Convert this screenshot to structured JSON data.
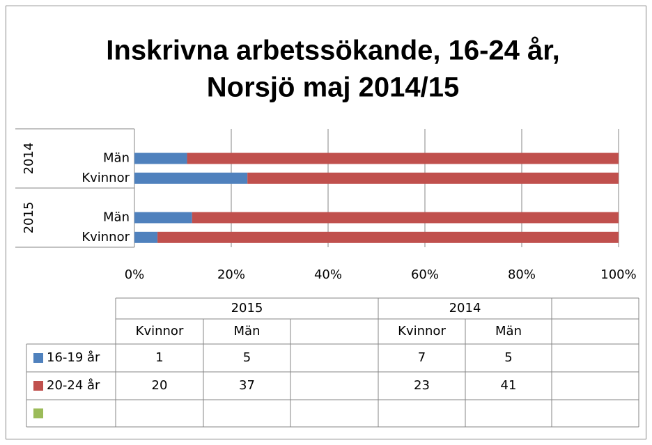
{
  "chart_data": {
    "type": "bar_stacked_100",
    "orientation": "horizontal",
    "title": [
      "Inskrivna arbetssökande, 16-24 år,",
      "Norsjö maj 2014/15"
    ],
    "groups": [
      "2015",
      "2014"
    ],
    "categories": [
      "Kvinnor",
      "Män",
      null,
      "Kvinnor",
      "Män",
      null
    ],
    "series": [
      {
        "name": "16-19 år",
        "color": "#4f81bd",
        "values": [
          1,
          5,
          null,
          7,
          5,
          null
        ]
      },
      {
        "name": "20-24 år",
        "color": "#c0504d",
        "values": [
          20,
          37,
          null,
          23,
          41,
          null
        ]
      },
      {
        "name": null,
        "color": "#9bbb59",
        "values": [
          null,
          null,
          null,
          null,
          null,
          null
        ]
      }
    ],
    "xlim": [
      0,
      100
    ],
    "xticks": [
      {
        "value": 0,
        "label": "0%"
      },
      {
        "value": 20,
        "label": "20%"
      },
      {
        "value": 40,
        "label": "40%"
      },
      {
        "value": 60,
        "label": "60%"
      },
      {
        "value": 80,
        "label": "80%"
      },
      {
        "value": 100,
        "label": "100%"
      }
    ],
    "grid": true,
    "data_table": true
  }
}
